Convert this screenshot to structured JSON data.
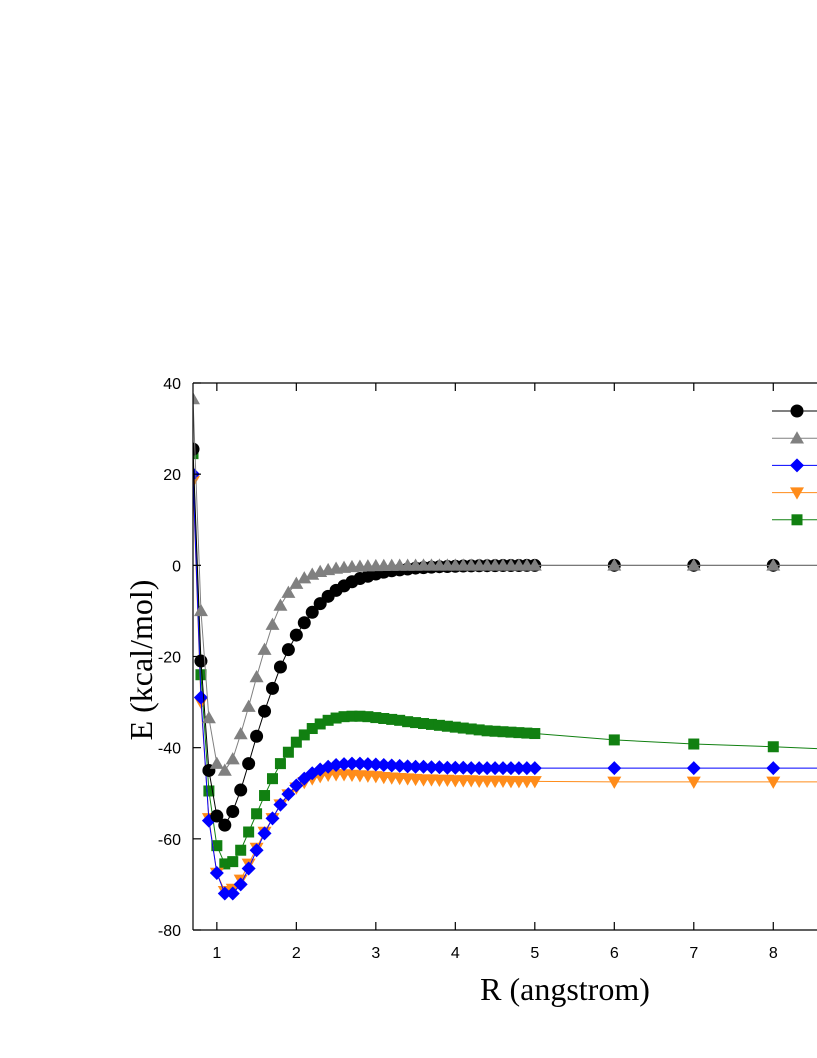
{
  "chart_data": {
    "type": "line",
    "title": "",
    "xlabel": "R (angstrom)",
    "ylabel": "E (kcal/mol)",
    "xlim": [
      0.7,
      8.55
    ],
    "ylim": [
      -80,
      40
    ],
    "xticks": [
      1,
      2,
      3,
      4,
      5,
      6,
      7,
      8
    ],
    "yticks": [
      -80,
      -60,
      -40,
      -20,
      0,
      20,
      40
    ],
    "grid": false,
    "legend": "top-right",
    "series": [
      {
        "marker": "circle",
        "color": "#000000",
        "x": [
          0.7,
          0.8,
          0.9,
          1.0,
          1.1,
          1.2,
          1.3,
          1.4,
          1.5,
          1.6,
          1.7,
          1.8,
          1.9,
          2.0,
          2.1,
          2.2,
          2.3,
          2.4,
          2.5,
          2.6,
          2.7,
          2.8,
          2.9,
          3.0,
          3.1,
          3.2,
          3.3,
          3.4,
          3.5,
          3.6,
          3.7,
          3.8,
          3.9,
          4.0,
          4.1,
          4.2,
          4.3,
          4.4,
          4.5,
          4.6,
          4.7,
          4.8,
          4.9,
          5.0,
          6.0,
          7.0,
          8.0
        ],
        "values": [
          25.5,
          -21,
          -45,
          -55,
          -57,
          -54,
          -49.3,
          -43.5,
          -37.5,
          -32,
          -27,
          -22.3,
          -18.5,
          -15.3,
          -12.6,
          -10.3,
          -8.4,
          -6.8,
          -5.5,
          -4.5,
          -3.6,
          -2.9,
          -2.4,
          -1.9,
          -1.5,
          -1.2,
          -1.0,
          -0.8,
          -0.6,
          -0.5,
          -0.4,
          -0.3,
          -0.25,
          -0.2,
          -0.15,
          -0.12,
          -0.1,
          -0.08,
          -0.06,
          -0.05,
          -0.04,
          -0.03,
          -0.02,
          -0.02,
          0,
          0,
          0
        ]
      },
      {
        "marker": "triangle-up",
        "color": "#808080",
        "x": [
          0.7,
          0.8,
          0.9,
          1.0,
          1.1,
          1.2,
          1.3,
          1.4,
          1.5,
          1.6,
          1.7,
          1.8,
          1.9,
          2.0,
          2.1,
          2.2,
          2.3,
          2.4,
          2.5,
          2.6,
          2.7,
          2.8,
          2.9,
          3.0,
          3.1,
          3.2,
          3.3,
          3.4,
          3.5,
          3.6,
          3.7,
          3.8,
          3.9,
          4.0,
          4.1,
          4.2,
          4.3,
          4.4,
          4.5,
          4.6,
          4.7,
          4.8,
          4.9,
          5.0,
          6.0,
          7.0,
          8.0
        ],
        "values": [
          36.5,
          -10,
          -33.5,
          -43.5,
          -45,
          -42.5,
          -37,
          -31,
          -24.5,
          -18.5,
          -13,
          -8.8,
          -6,
          -4,
          -2.8,
          -2,
          -1.4,
          -1,
          -0.7,
          -0.5,
          -0.35,
          -0.25,
          -0.18,
          -0.13,
          -0.1,
          -0.07,
          -0.05,
          -0.04,
          -0.03,
          -0.02,
          -0.02,
          -0.01,
          -0.01,
          -0.01,
          0,
          0,
          0,
          0,
          0,
          0,
          0,
          0,
          0,
          0,
          0,
          0,
          0
        ]
      },
      {
        "marker": "diamond",
        "color": "#0000ff",
        "x": [
          0.7,
          0.8,
          0.9,
          1.0,
          1.1,
          1.2,
          1.3,
          1.4,
          1.5,
          1.6,
          1.7,
          1.8,
          1.9,
          2.0,
          2.1,
          2.2,
          2.3,
          2.4,
          2.5,
          2.6,
          2.7,
          2.8,
          2.9,
          3.0,
          3.1,
          3.2,
          3.3,
          3.4,
          3.5,
          3.6,
          3.7,
          3.8,
          3.9,
          4.0,
          4.1,
          4.2,
          4.3,
          4.4,
          4.5,
          4.6,
          4.7,
          4.8,
          4.9,
          5.0,
          6.0,
          7.0,
          8.0
        ],
        "values": [
          20,
          -29,
          -56,
          -67.5,
          -72,
          -72,
          -70,
          -66.5,
          -62.5,
          -58.8,
          -55.5,
          -52.5,
          -50.2,
          -48.3,
          -46.8,
          -45.6,
          -44.8,
          -44.2,
          -43.8,
          -43.6,
          -43.5,
          -43.5,
          -43.6,
          -43.7,
          -43.8,
          -43.9,
          -44.0,
          -44.1,
          -44.2,
          -44.2,
          -44.3,
          -44.3,
          -44.4,
          -44.4,
          -44.4,
          -44.5,
          -44.5,
          -44.5,
          -44.5,
          -44.5,
          -44.5,
          -44.5,
          -44.5,
          -44.5,
          -44.5,
          -44.5,
          -44.5
        ]
      },
      {
        "marker": "triangle-down",
        "color": "#ff8c1a",
        "x": [
          0.7,
          0.8,
          0.9,
          1.0,
          1.1,
          1.2,
          1.3,
          1.4,
          1.5,
          1.6,
          1.7,
          1.8,
          1.9,
          2.0,
          2.1,
          2.2,
          2.3,
          2.4,
          2.5,
          2.6,
          2.7,
          2.8,
          2.9,
          3.0,
          3.1,
          3.2,
          3.3,
          3.4,
          3.5,
          3.6,
          3.7,
          3.8,
          3.9,
          4.0,
          4.1,
          4.2,
          4.3,
          4.4,
          4.5,
          4.6,
          4.7,
          4.8,
          4.9,
          5.0,
          6.0,
          7.0,
          8.0
        ],
        "values": [
          18.5,
          -30,
          -55.5,
          -67.5,
          -71.5,
          -71,
          -69,
          -65.5,
          -62,
          -58.5,
          -55.5,
          -52.5,
          -50.3,
          -48.8,
          -47.6,
          -46.8,
          -46.3,
          -46.0,
          -45.9,
          -45.9,
          -46.0,
          -46.1,
          -46.2,
          -46.3,
          -46.5,
          -46.6,
          -46.7,
          -46.8,
          -46.9,
          -47.0,
          -47.0,
          -47.1,
          -47.1,
          -47.2,
          -47.2,
          -47.2,
          -47.3,
          -47.3,
          -47.3,
          -47.3,
          -47.4,
          -47.4,
          -47.4,
          -47.4,
          -47.5,
          -47.5,
          -47.5
        ]
      },
      {
        "marker": "square",
        "color": "#118011",
        "x": [
          0.7,
          0.8,
          0.9,
          1.0,
          1.1,
          1.2,
          1.3,
          1.4,
          1.5,
          1.6,
          1.7,
          1.8,
          1.9,
          2.0,
          2.1,
          2.2,
          2.3,
          2.4,
          2.5,
          2.6,
          2.7,
          2.8,
          2.9,
          3.0,
          3.1,
          3.2,
          3.3,
          3.4,
          3.5,
          3.6,
          3.7,
          3.8,
          3.9,
          4.0,
          4.1,
          4.2,
          4.3,
          4.4,
          4.5,
          4.6,
          4.7,
          4.8,
          4.9,
          5.0,
          6.0,
          7.0,
          8.0,
          8.55
        ],
        "values": [
          24.5,
          -24,
          -49.5,
          -61.5,
          -65.5,
          -65,
          -62.5,
          -58.5,
          -54.5,
          -50.5,
          -46.8,
          -43.5,
          -41,
          -38.8,
          -37.2,
          -35.8,
          -34.8,
          -34,
          -33.5,
          -33.2,
          -33.1,
          -33.1,
          -33.2,
          -33.4,
          -33.6,
          -33.8,
          -34,
          -34.3,
          -34.5,
          -34.7,
          -34.9,
          -35.1,
          -35.3,
          -35.5,
          -35.7,
          -35.9,
          -36.1,
          -36.3,
          -36.4,
          -36.5,
          -36.6,
          -36.7,
          -36.8,
          -36.9,
          -38.3,
          -39.2,
          -39.8,
          -40.2
        ]
      }
    ]
  }
}
